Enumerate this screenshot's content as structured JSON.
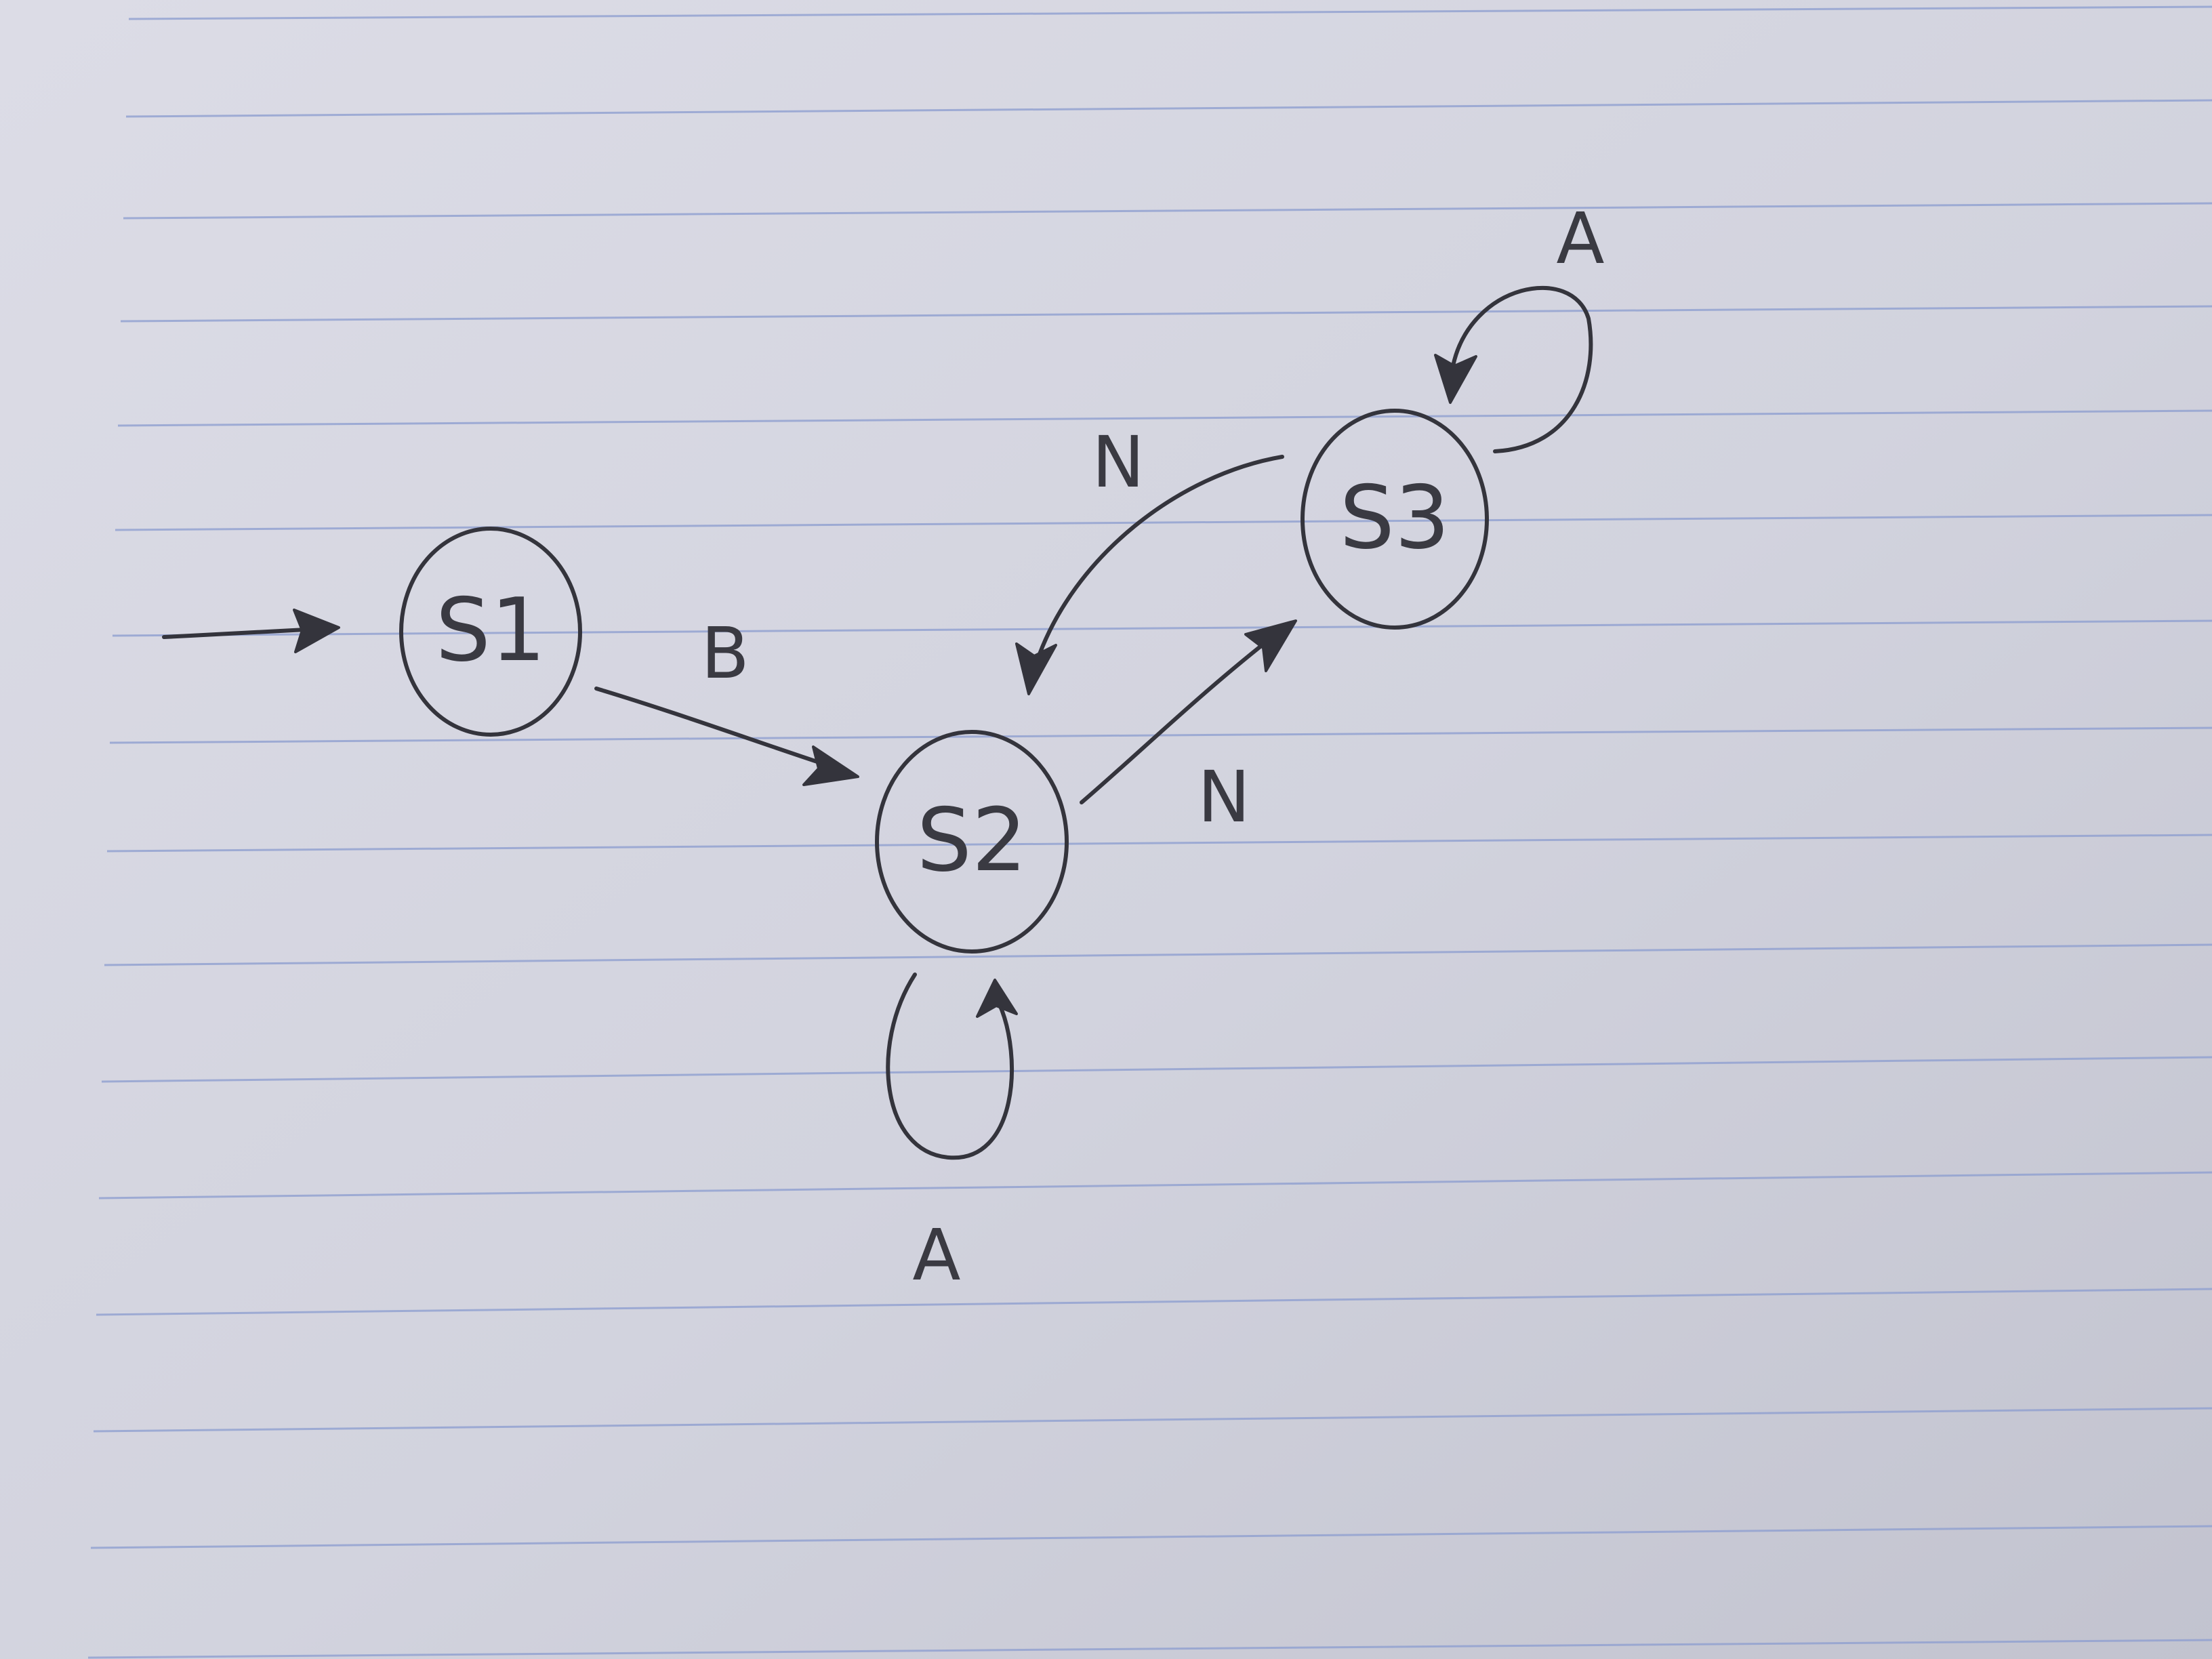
{
  "diagram": {
    "type": "state-machine",
    "states": [
      {
        "id": "s1",
        "label": "S1",
        "initial": true
      },
      {
        "id": "s2",
        "label": "S2"
      },
      {
        "id": "s3",
        "label": "S3"
      }
    ],
    "transitions": [
      {
        "from": "s1",
        "to": "s2",
        "label": "B"
      },
      {
        "from": "s2",
        "to": "s3",
        "label": "N"
      },
      {
        "from": "s3",
        "to": "s2",
        "label": "N"
      },
      {
        "from": "s2",
        "to": "s2",
        "label": "A"
      },
      {
        "from": "s3",
        "to": "s3",
        "label": "A"
      }
    ]
  },
  "colors": {
    "ink": "#34343c",
    "ruled_line": "#8f9fd0"
  }
}
